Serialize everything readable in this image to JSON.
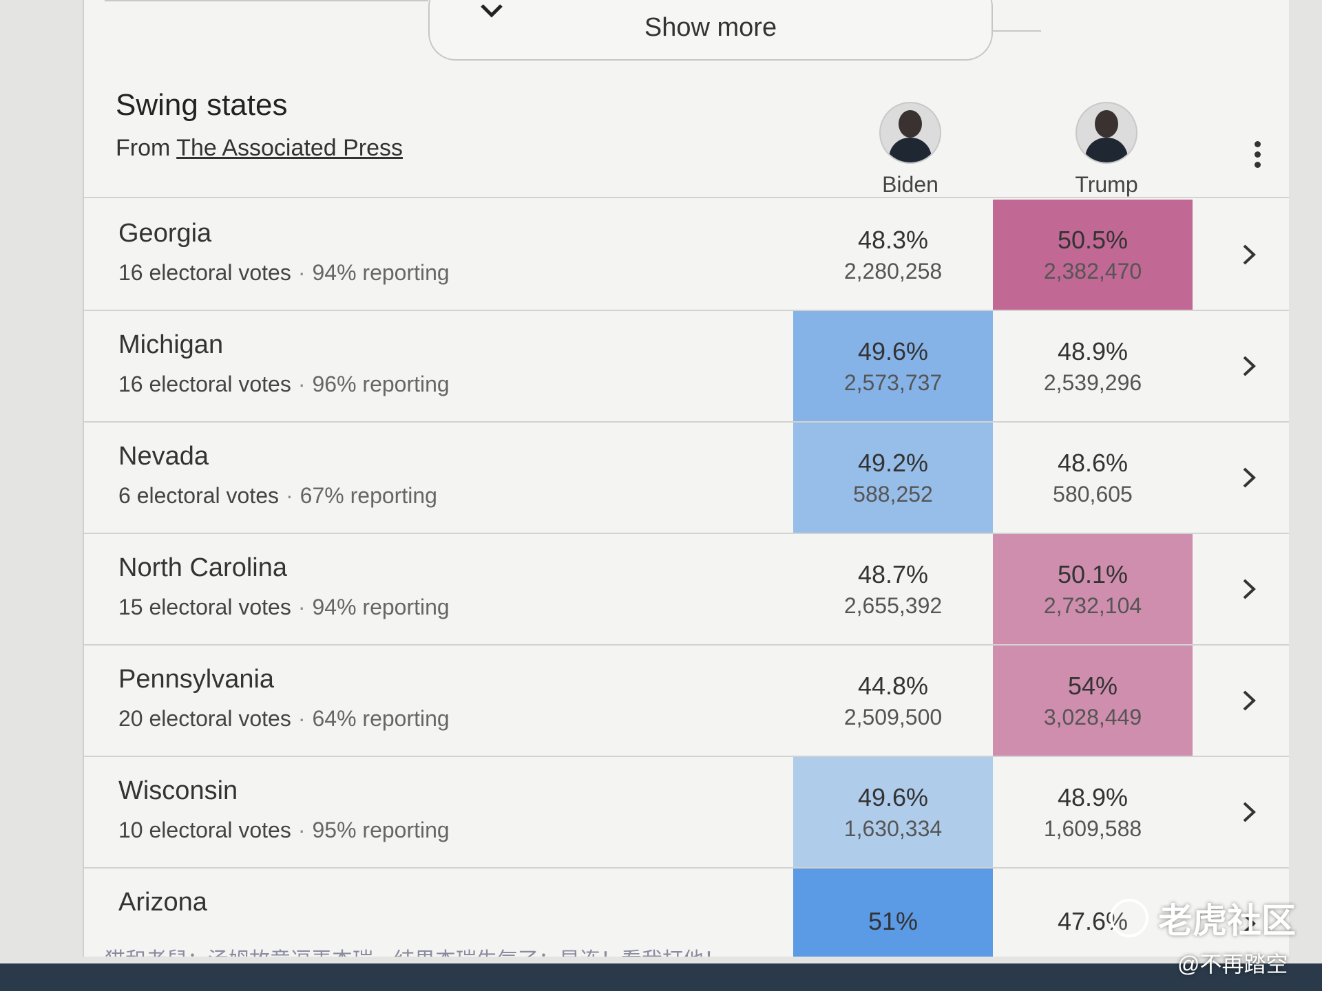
{
  "show_more": {
    "label": "Show more"
  },
  "header": {
    "title": "Swing states",
    "source_prefix": "From",
    "source_link": "The Associated Press"
  },
  "candidates": [
    {
      "name": "Biden",
      "color": "#4a90e2"
    },
    {
      "name": "Trump",
      "color": "#b03a74"
    }
  ],
  "states": [
    {
      "name": "Georgia",
      "electoral": "16 electoral votes",
      "reporting": "94% reporting",
      "biden": {
        "pct": "48.3%",
        "votes": "2,280,258"
      },
      "trump": {
        "pct": "50.5%",
        "votes": "2,382,470"
      },
      "leader": "trump",
      "shade": 0.75
    },
    {
      "name": "Michigan",
      "electoral": "16 electoral votes",
      "reporting": "96% reporting",
      "biden": {
        "pct": "49.6%",
        "votes": "2,573,737"
      },
      "trump": {
        "pct": "48.9%",
        "votes": "2,539,296"
      },
      "leader": "biden",
      "shade": 0.65
    },
    {
      "name": "Nevada",
      "electoral": "6 electoral votes",
      "reporting": "67% reporting",
      "biden": {
        "pct": "49.2%",
        "votes": "588,252"
      },
      "trump": {
        "pct": "48.6%",
        "votes": "580,605"
      },
      "leader": "biden",
      "shade": 0.55
    },
    {
      "name": "North Carolina",
      "electoral": "15 electoral votes",
      "reporting": "94% reporting",
      "biden": {
        "pct": "48.7%",
        "votes": "2,655,392"
      },
      "trump": {
        "pct": "50.1%",
        "votes": "2,732,104"
      },
      "leader": "trump",
      "shade": 0.55
    },
    {
      "name": "Pennsylvania",
      "electoral": "20 electoral votes",
      "reporting": "64% reporting",
      "biden": {
        "pct": "44.8%",
        "votes": "2,509,500"
      },
      "trump": {
        "pct": "54%",
        "votes": "3,028,449"
      },
      "leader": "trump",
      "shade": 0.55
    },
    {
      "name": "Wisconsin",
      "electoral": "10 electoral votes",
      "reporting": "95% reporting",
      "biden": {
        "pct": "49.6%",
        "votes": "1,630,334"
      },
      "trump": {
        "pct": "48.9%",
        "votes": "1,609,588"
      },
      "leader": "biden",
      "shade": 0.4
    },
    {
      "name": "Arizona",
      "electoral": "",
      "reporting": "",
      "biden": {
        "pct": "51%",
        "votes": ""
      },
      "trump": {
        "pct": "47.6%",
        "votes": ""
      },
      "leader": "biden",
      "shade": 0.9
    }
  ],
  "footer_text": "猫和老鼠：汤姆故意逗弄杰瑞，结果杰瑞生气了：星连！看我打他！",
  "watermark": {
    "brand": "老虎社区",
    "user": "@不再踏空"
  }
}
